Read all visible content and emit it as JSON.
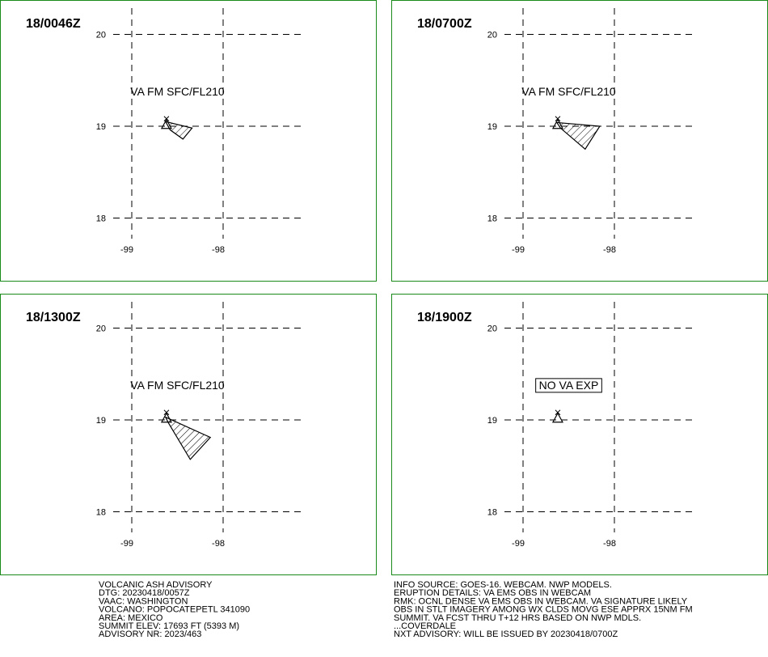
{
  "panels": [
    {
      "time": "18/0046Z",
      "label": "VA FM SFC/FL210",
      "ash": [
        [
          -98.63,
          19.05
        ],
        [
          -98.34,
          18.98
        ],
        [
          -98.44,
          18.86
        ],
        [
          -98.58,
          18.96
        ]
      ]
    },
    {
      "time": "18/0700Z",
      "label": "VA FM SFC/FL210",
      "ash": [
        [
          -98.63,
          19.04
        ],
        [
          -98.16,
          19.0
        ],
        [
          -98.32,
          18.75
        ],
        [
          -98.59,
          18.98
        ]
      ]
    },
    {
      "time": "18/1300Z",
      "label": "VA FM SFC/FL210",
      "ash": [
        [
          -98.63,
          19.03
        ],
        [
          -98.14,
          18.81
        ],
        [
          -98.36,
          18.57
        ],
        [
          -98.6,
          18.97
        ]
      ]
    },
    {
      "time": "18/1900Z",
      "label": "NO VA EXP"
    }
  ],
  "volcano": [
    -98.62,
    19.02
  ],
  "lat_ticks": [
    20,
    19,
    18
  ],
  "lon_ticks": [
    -99,
    -98
  ],
  "advisory_left": [
    "VOLCANIC ASH ADVISORY",
    "DTG: 20230418/0057Z",
    "VAAC: WASHINGTON",
    "VOLCANO: POPOCATEPETL 341090",
    "AREA: MEXICO",
    "SUMMIT ELEV: 17693 FT (5393 M)",
    "ADVISORY NR: 2023/463"
  ],
  "advisory_right": [
    "INFO SOURCE: GOES-16. WEBCAM. NWP MODELS.",
    "ERUPTION DETAILS: VA EMS OBS IN WEBCAM",
    "RMK: OCNL DENSE VA EMS OBS IN WEBCAM. VA SIGNATURE LIKELY",
    "OBS IN STLT IMAGERY AMONG WX CLDS MOVG ESE APPRX 15NM FM",
    "SUMMIT. VA FCST THRU T+12 HRS BASED ON NWP MDLS.",
    "...COVERDALE",
    "NXT ADVISORY: WILL BE ISSUED BY 20230418/0700Z"
  ]
}
